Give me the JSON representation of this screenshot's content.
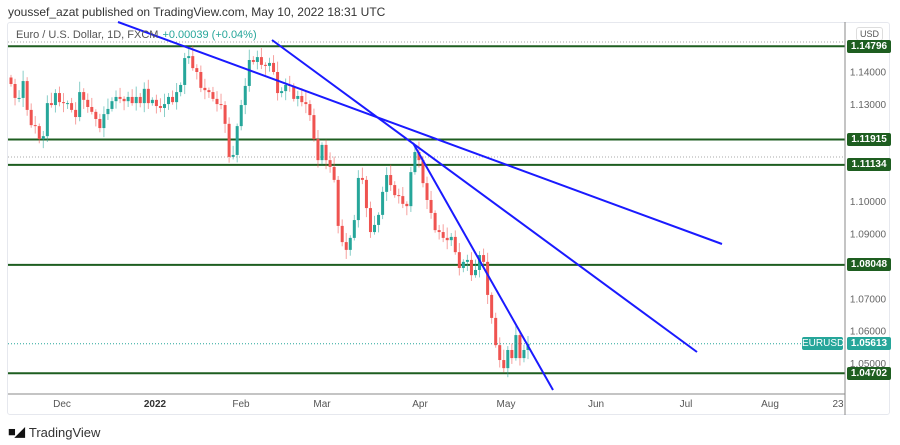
{
  "header": {
    "publisher_text": "youssef_azat published on TradingView.com, May 10, 2022 18:31 UTC"
  },
  "symbol": {
    "title": "Euro / U.S. Dollar, 1D, FXCM",
    "change": "+0.00039 (+0.04%)",
    "tag": "EURUSD"
  },
  "currency_button": "USD",
  "footer": {
    "brand": "TradingView",
    "logo_text": "TV"
  },
  "colors": {
    "up": "#26a69a",
    "down": "#ef5350",
    "level": "#1e5e20",
    "trendline": "#1a1aff",
    "current": "#26a69a"
  },
  "chart_data": {
    "type": "candlestick",
    "title": "Euro / U.S. Dollar, 1D, FXCM",
    "ylim": [
      1.0395,
      1.1555
    ],
    "grid": false,
    "y_ticks": [
      "1.14000",
      "1.13000",
      "1.10000",
      "1.09000",
      "1.07000",
      "1.06000",
      "1.05000"
    ],
    "x_ticks": [
      {
        "label": "Dec",
        "bold": false
      },
      {
        "label": "2022",
        "bold": true
      },
      {
        "label": "Feb",
        "bold": false
      },
      {
        "label": "Mar",
        "bold": false
      },
      {
        "label": "Apr",
        "bold": false
      },
      {
        "label": "May",
        "bold": false
      },
      {
        "label": "Jun",
        "bold": false
      },
      {
        "label": "Jul",
        "bold": false
      },
      {
        "label": "Aug",
        "bold": false
      },
      {
        "label": "23",
        "bold": false
      }
    ],
    "levels": [
      "1.14796",
      "1.11915",
      "1.11134",
      "1.08048",
      "1.04702"
    ],
    "current_price": "1.05613",
    "closes": [
      1.1363,
      1.132,
      1.132,
      1.1372,
      1.1283,
      1.1236,
      1.1233,
      1.1193,
      1.1202,
      1.1304,
      1.1298,
      1.1335,
      1.1307,
      1.1304,
      1.1304,
      1.1283,
      1.1261,
      1.1338,
      1.1314,
      1.1292,
      1.1277,
      1.1255,
      1.1227,
      1.127,
      1.1286,
      1.131,
      1.1323,
      1.1317,
      1.131,
      1.1323,
      1.1304,
      1.1323,
      1.1304,
      1.1348,
      1.1304,
      1.1314,
      1.1295,
      1.1289,
      1.1301,
      1.1323,
      1.1307,
      1.1338,
      1.136,
      1.1443,
      1.1449,
      1.1412,
      1.14,
      1.1351,
      1.1344,
      1.1338,
      1.1317,
      1.1301,
      1.1298,
      1.124,
      1.1138,
      1.1144,
      1.1233,
      1.1298,
      1.1357,
      1.1437,
      1.1431,
      1.1446,
      1.1422,
      1.1419,
      1.1428,
      1.14,
      1.1335,
      1.1341,
      1.136,
      1.1357,
      1.1317,
      1.1326,
      1.1307,
      1.1301,
      1.1267,
      1.1193,
      1.1128,
      1.1175,
      1.1128,
      1.1107,
      1.1067,
      1.0925,
      1.0875,
      1.0851,
      1.0888,
      1.0943,
      1.1073,
      1.1067,
      1.098,
      1.0906,
      1.0928,
      1.0959,
      1.103,
      1.1082,
      1.1051,
      1.102,
      1.1017,
      1.0993,
      1.0986,
      1.1091,
      1.1153,
      1.1128,
      1.1057,
      1.1005,
      1.0965,
      1.0912,
      1.0906,
      1.0888,
      1.0881,
      1.0891,
      1.0844,
      1.0795,
      1.0814,
      1.082,
      1.0773,
      1.0789,
      1.0835,
      1.0814,
      1.0712,
      1.0641,
      1.0557,
      1.0511,
      1.0486,
      1.0542,
      1.0517,
      1.0588,
      1.0517,
      1.0542,
      1.0561
    ]
  }
}
